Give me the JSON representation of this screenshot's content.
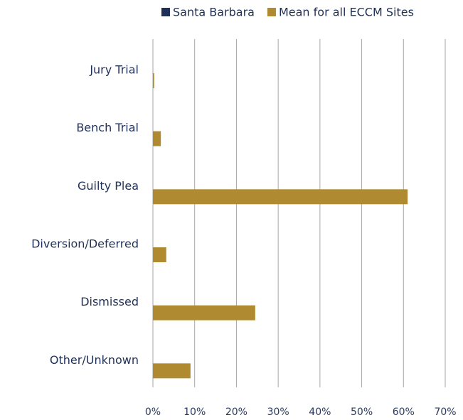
{
  "chart_data": {
    "type": "hbar",
    "categories": [
      "Jury Trial",
      "Bench Trial",
      "Guilty Plea",
      "Diversion/Deferred",
      "Dismissed",
      "Other/Unknown"
    ],
    "series": [
      {
        "name": "Santa Barbara",
        "color": "#1f3058",
        "values": [
          null,
          null,
          null,
          null,
          null,
          null
        ]
      },
      {
        "name": "Mean for all ECCM Sites",
        "color": "#b08a30",
        "values": [
          0.3,
          1.9,
          61,
          3.2,
          24.5,
          9
        ]
      }
    ],
    "xlim": [
      0,
      70
    ],
    "xticks": [
      {
        "value": 0,
        "label": "0%"
      },
      {
        "value": 10,
        "label": "10%"
      },
      {
        "value": 20,
        "label": "20%"
      },
      {
        "value": 30,
        "label": "30%"
      },
      {
        "value": 40,
        "label": "40%"
      },
      {
        "value": 50,
        "label": "50%"
      },
      {
        "value": 60,
        "label": "60%"
      },
      {
        "value": 70,
        "label": "70%"
      }
    ],
    "grid": true,
    "legend": "top"
  }
}
